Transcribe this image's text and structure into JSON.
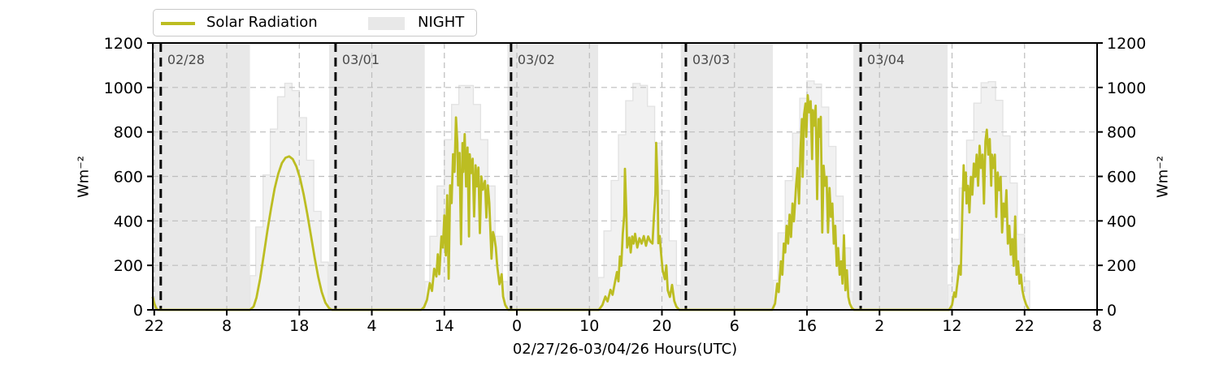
{
  "legend": {
    "series_label": "Solar Radiation",
    "night_label": "NIGHT"
  },
  "axis_labels": {
    "y_left": "Wm⁻²",
    "y_right": "Wm⁻²",
    "x": "02/27/26-03/04/26  Hours(UTC)"
  },
  "colors": {
    "curve": "#bcbd22",
    "night": "#e8e8e8",
    "envelope_fill": "#f1f1f1",
    "envelope_stroke": "#e2e2e2",
    "grid": "#bdbdbd",
    "date_line": "#0a0a0a",
    "date_label": "#4a4a4a",
    "axis": "#000000",
    "legend_border": "#c9c9c9"
  },
  "chart_data": {
    "type": "line",
    "title": "",
    "xlabel": "02/27/26-03/04/26  Hours(UTC)",
    "ylabel": "Wm⁻²",
    "x_axis": {
      "hours_zero_at": "02/27 22:00 UTC",
      "xlim_hours": [
        -0.2,
        130
      ],
      "tick_hours": [
        0,
        10,
        20,
        30,
        40,
        50,
        60,
        70,
        80,
        90,
        100,
        110,
        120,
        130
      ],
      "tick_labels": [
        "22",
        "8",
        "18",
        "4",
        "14",
        "0",
        "10",
        "20",
        "6",
        "16",
        "2",
        "12",
        "22",
        "8"
      ]
    },
    "y_axis": {
      "ylim": [
        0,
        1200
      ],
      "ticks": [
        0,
        200,
        400,
        600,
        800,
        1000,
        1200
      ],
      "unit": "Wm⁻²"
    },
    "grid": {
      "horizontal_at": [
        200,
        400,
        600,
        800,
        1000
      ],
      "style": "dashed"
    },
    "night_bands_hours": [
      [
        -0.2,
        13.2
      ],
      [
        24.1,
        37.3
      ],
      [
        48.7,
        61.2
      ],
      [
        72.6,
        85.3
      ],
      [
        96.4,
        109.4
      ]
    ],
    "date_lines": [
      {
        "hour": 0.9,
        "label": "02/28"
      },
      {
        "hour": 25.0,
        "label": "03/01"
      },
      {
        "hour": 49.2,
        "label": "03/02"
      },
      {
        "hour": 73.3,
        "label": "03/03"
      },
      {
        "hour": 97.4,
        "label": "03/04"
      }
    ],
    "clear_sky_envelope_days": [
      {
        "sunrise": 13.2,
        "sunset": 24.1,
        "peak": 1020
      },
      {
        "sunrise": 37.3,
        "sunset": 48.7,
        "peak": 1020
      },
      {
        "sunrise": 61.2,
        "sunset": 72.6,
        "peak": 1025
      },
      {
        "sunrise": 85.3,
        "sunset": 96.4,
        "peak": 1035
      },
      {
        "sunrise": 109.4,
        "sunset": 120.7,
        "peak": 1035
      }
    ],
    "series": [
      {
        "name": "Solar Radiation",
        "points": [
          [
            -0.2,
            55
          ],
          [
            0.05,
            25
          ],
          [
            0.3,
            5
          ],
          [
            0.5,
            0
          ],
          [
            13.2,
            0
          ],
          [
            13.7,
            15
          ],
          [
            14.1,
            55
          ],
          [
            14.6,
            140
          ],
          [
            15.1,
            245
          ],
          [
            15.6,
            355
          ],
          [
            16.1,
            455
          ],
          [
            16.6,
            545
          ],
          [
            17.1,
            612
          ],
          [
            17.6,
            660
          ],
          [
            18.1,
            684
          ],
          [
            18.6,
            690
          ],
          [
            19.1,
            678
          ],
          [
            19.6,
            645
          ],
          [
            20.1,
            592
          ],
          [
            20.6,
            520
          ],
          [
            21.1,
            432
          ],
          [
            21.6,
            335
          ],
          [
            22.1,
            238
          ],
          [
            22.6,
            150
          ],
          [
            23.1,
            80
          ],
          [
            23.6,
            32
          ],
          [
            24.1,
            8
          ],
          [
            24.5,
            0
          ],
          [
            36.8,
            0
          ],
          [
            37.2,
            12
          ],
          [
            37.6,
            45
          ],
          [
            38.0,
            120
          ],
          [
            38.3,
            85
          ],
          [
            38.6,
            185
          ],
          [
            38.9,
            150
          ],
          [
            39.1,
            250
          ],
          [
            39.3,
            160
          ],
          [
            39.6,
            330
          ],
          [
            39.8,
            280
          ],
          [
            40.0,
            425
          ],
          [
            40.2,
            245
          ],
          [
            40.4,
            515
          ],
          [
            40.6,
            140
          ],
          [
            40.8,
            560
          ],
          [
            41.0,
            480
          ],
          [
            41.2,
            700
          ],
          [
            41.4,
            620
          ],
          [
            41.6,
            865
          ],
          [
            41.8,
            750
          ],
          [
            41.9,
            560
          ],
          [
            42.1,
            705
          ],
          [
            42.3,
            295
          ],
          [
            42.5,
            750
          ],
          [
            42.6,
            620
          ],
          [
            42.8,
            790
          ],
          [
            43.0,
            555
          ],
          [
            43.2,
            730
          ],
          [
            43.4,
            330
          ],
          [
            43.5,
            700
          ],
          [
            43.7,
            615
          ],
          [
            43.9,
            680
          ],
          [
            44.1,
            420
          ],
          [
            44.3,
            650
          ],
          [
            44.5,
            555
          ],
          [
            44.7,
            640
          ],
          [
            44.9,
            345
          ],
          [
            45.1,
            600
          ],
          [
            45.3,
            540
          ],
          [
            45.6,
            580
          ],
          [
            45.8,
            415
          ],
          [
            46.0,
            560
          ],
          [
            46.2,
            480
          ],
          [
            46.5,
            230
          ],
          [
            46.7,
            350
          ],
          [
            46.9,
            325
          ],
          [
            47.1,
            280
          ],
          [
            47.3,
            195
          ],
          [
            47.6,
            115
          ],
          [
            47.9,
            160
          ],
          [
            48.1,
            60
          ],
          [
            48.4,
            22
          ],
          [
            48.8,
            0
          ],
          [
            61.3,
            0
          ],
          [
            61.8,
            22
          ],
          [
            62.2,
            60
          ],
          [
            62.5,
            38
          ],
          [
            62.9,
            90
          ],
          [
            63.2,
            68
          ],
          [
            63.5,
            120
          ],
          [
            63.8,
            170
          ],
          [
            64.0,
            128
          ],
          [
            64.2,
            240
          ],
          [
            64.4,
            198
          ],
          [
            64.6,
            340
          ],
          [
            64.8,
            425
          ],
          [
            64.9,
            634
          ],
          [
            65.1,
            430
          ],
          [
            65.2,
            280
          ],
          [
            65.5,
            325
          ],
          [
            65.7,
            258
          ],
          [
            65.9,
            330
          ],
          [
            66.1,
            298
          ],
          [
            66.3,
            342
          ],
          [
            66.6,
            280
          ],
          [
            66.9,
            322
          ],
          [
            67.2,
            298
          ],
          [
            67.5,
            332
          ],
          [
            67.8,
            288
          ],
          [
            68.1,
            330
          ],
          [
            68.4,
            308
          ],
          [
            68.7,
            298
          ],
          [
            68.9,
            420
          ],
          [
            69.1,
            520
          ],
          [
            69.2,
            751
          ],
          [
            69.4,
            555
          ],
          [
            69.5,
            300
          ],
          [
            69.7,
            332
          ],
          [
            69.9,
            248
          ],
          [
            70.1,
            178
          ],
          [
            70.4,
            138
          ],
          [
            70.6,
            200
          ],
          [
            70.8,
            88
          ],
          [
            71.1,
            58
          ],
          [
            71.4,
            112
          ],
          [
            71.7,
            40
          ],
          [
            72.0,
            14
          ],
          [
            72.4,
            0
          ],
          [
            85.2,
            0
          ],
          [
            85.6,
            28
          ],
          [
            85.9,
            118
          ],
          [
            86.1,
            80
          ],
          [
            86.4,
            218
          ],
          [
            86.6,
            158
          ],
          [
            86.8,
            298
          ],
          [
            87.0,
            258
          ],
          [
            87.2,
            378
          ],
          [
            87.4,
            298
          ],
          [
            87.6,
            428
          ],
          [
            87.8,
            328
          ],
          [
            88.0,
            478
          ],
          [
            88.2,
            398
          ],
          [
            88.5,
            558
          ],
          [
            88.7,
            638
          ],
          [
            88.9,
            478
          ],
          [
            89.1,
            718
          ],
          [
            89.3,
            858
          ],
          [
            89.4,
            598
          ],
          [
            89.6,
            878
          ],
          [
            89.8,
            928
          ],
          [
            89.9,
            778
          ],
          [
            90.1,
            965
          ],
          [
            90.3,
            888
          ],
          [
            90.5,
            938
          ],
          [
            90.7,
            678
          ],
          [
            90.8,
            898
          ],
          [
            91.0,
            828
          ],
          [
            91.2,
            918
          ],
          [
            91.4,
            498
          ],
          [
            91.6,
            858
          ],
          [
            91.7,
            778
          ],
          [
            91.9,
            868
          ],
          [
            92.1,
            348
          ],
          [
            92.3,
            648
          ],
          [
            92.5,
            558
          ],
          [
            92.7,
            598
          ],
          [
            92.9,
            348
          ],
          [
            93.1,
            548
          ],
          [
            93.3,
            418
          ],
          [
            93.5,
            478
          ],
          [
            93.7,
            298
          ],
          [
            93.9,
            378
          ],
          [
            94.1,
            198
          ],
          [
            94.3,
            278
          ],
          [
            94.5,
            158
          ],
          [
            94.7,
            218
          ],
          [
            94.9,
            118
          ],
          [
            95.1,
            335
          ],
          [
            95.3,
            88
          ],
          [
            95.5,
            178
          ],
          [
            95.7,
            58
          ],
          [
            95.9,
            28
          ],
          [
            96.2,
            8
          ],
          [
            96.5,
            0
          ],
          [
            109.6,
            0
          ],
          [
            110.0,
            22
          ],
          [
            110.3,
            78
          ],
          [
            110.5,
            58
          ],
          [
            110.8,
            138
          ],
          [
            111.0,
            198
          ],
          [
            111.2,
            158
          ],
          [
            111.4,
            418
          ],
          [
            111.6,
            650
          ],
          [
            111.7,
            538
          ],
          [
            111.9,
            618
          ],
          [
            112.0,
            478
          ],
          [
            112.2,
            558
          ],
          [
            112.4,
            438
          ],
          [
            112.6,
            598
          ],
          [
            112.8,
            518
          ],
          [
            113.0,
            658
          ],
          [
            113.2,
            598
          ],
          [
            113.4,
            698
          ],
          [
            113.6,
            558
          ],
          [
            113.8,
            738
          ],
          [
            114.0,
            638
          ],
          [
            114.2,
            698
          ],
          [
            114.4,
            478
          ],
          [
            114.6,
            758
          ],
          [
            114.8,
            810
          ],
          [
            115.0,
            698
          ],
          [
            115.2,
            768
          ],
          [
            115.4,
            558
          ],
          [
            115.5,
            698
          ],
          [
            115.7,
            638
          ],
          [
            115.9,
            698
          ],
          [
            116.1,
            418
          ],
          [
            116.3,
            618
          ],
          [
            116.5,
            538
          ],
          [
            116.7,
            598
          ],
          [
            116.9,
            348
          ],
          [
            117.1,
            478
          ],
          [
            117.3,
            418
          ],
          [
            117.5,
            538
          ],
          [
            117.7,
            298
          ],
          [
            117.9,
            378
          ],
          [
            118.1,
            248
          ],
          [
            118.3,
            318
          ],
          [
            118.5,
            198
          ],
          [
            118.7,
            420
          ],
          [
            118.9,
            158
          ],
          [
            119.1,
            218
          ],
          [
            119.3,
            118
          ],
          [
            119.5,
            158
          ],
          [
            119.7,
            88
          ],
          [
            119.9,
            55
          ],
          [
            120.2,
            25
          ],
          [
            120.6,
            0
          ]
        ]
      }
    ],
    "legend_position": "upper left (outside, above axes)"
  }
}
